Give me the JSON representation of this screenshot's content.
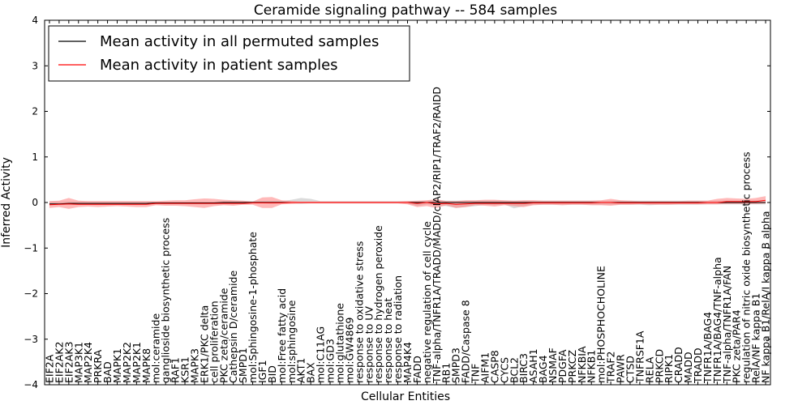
{
  "chart_data": {
    "type": "line",
    "title": "Ceramide signaling pathway -- 584 samples",
    "xlabel": "Cellular Entities",
    "ylabel": "Inferred Activity",
    "ylim": [
      -4,
      4
    ],
    "yticks": [
      4,
      3,
      2,
      1,
      0,
      -1,
      -2,
      -3,
      -4
    ],
    "ytick_labels": [
      "4",
      "3",
      "2",
      "1",
      "0",
      "−1",
      "−2",
      "−3",
      "−4"
    ],
    "legend_position": "top-left",
    "categories": [
      "EIF2A",
      "EIF2AK2",
      "EIF2AK3",
      "MAP3K1",
      "MAP2K4",
      "PRKRA",
      "BAD",
      "MAPK1",
      "MAP2K2",
      "MAP2K1",
      "MAPK8",
      "mol:ceramide",
      "ganglioside biosynthetic process",
      "RAF1",
      "KSR1",
      "MAPK3",
      "ERK1/PKC delta",
      "cell proliferation",
      "PKC zeta/ceramide",
      "Cathepsin D/ceramide",
      "SMPD1",
      "mol:Sphingosine-1-phosphate",
      "IGF1",
      "BID",
      "mol:Free fatty acid",
      "mol:sphingosine",
      "AKT1",
      "BAX",
      "mol:C11AG",
      "mol:GD3",
      "mol:glutathione",
      "mol:GW4869",
      "response to oxidative stress",
      "response to UV",
      "response to hydrogen peroxide",
      "response to heat",
      "response to radiation",
      "MAP4K4",
      "FADD",
      "negative regulation of cell cycle",
      "TNF-alpha/TNFR1A/TRADD/MADD/cIAP2/RIP1/TRAF2/RAIDD",
      "RB1",
      "SMPD3",
      "FADD/Caspase 8",
      "TNF",
      "AIFM1",
      "CASP8",
      "CYCS",
      "BCL2",
      "BIRC3",
      "ASAH1",
      "BAG4",
      "NSMAF",
      "PDGFA",
      "PRKCZ",
      "NFKBIA",
      "NFKB1",
      "mol:PHOSPHOCHOLINE",
      "TRAF2",
      "PAWR",
      "CTSD",
      "TNFRSF1A",
      "RELA",
      "PRKCD",
      "RIPK1",
      "CRADD",
      "MADD",
      "TRADD",
      "TNFR1A/BAG4",
      "TNFR1A/BAG4/TNF-alpha",
      "TNF-alpha/TNFR1A/FAN",
      "PKC zeta/PAR4",
      "regulation of nitric oxide biosynthetic process",
      "RelA/NF kappa B1",
      "NF kappa B1/RelA/I kappa B alpha"
    ],
    "series": [
      {
        "name": "Mean activity in all permuted samples",
        "color": "#000000",
        "values": [
          -0.03,
          -0.03,
          -0.02,
          -0.02,
          -0.02,
          -0.02,
          -0.02,
          -0.02,
          -0.02,
          -0.02,
          -0.02,
          -0.01,
          -0.01,
          -0.01,
          -0.01,
          -0.01,
          -0.01,
          -0.01,
          0,
          0,
          0,
          0,
          0,
          0,
          0,
          0,
          0,
          0,
          0,
          0,
          0,
          0,
          0,
          0,
          0,
          0,
          0,
          0,
          0,
          0,
          0,
          0,
          0,
          0,
          0,
          0,
          0,
          0,
          0,
          0,
          0,
          0,
          0,
          0,
          0,
          0,
          0,
          0,
          0,
          0,
          0,
          0,
          0,
          0,
          0,
          0,
          0,
          0,
          0,
          0,
          0,
          0,
          0,
          0,
          0
        ],
        "band": {
          "color": "#b0b0b0",
          "lower": [
            -0.06,
            -0.06,
            -0.05,
            -0.05,
            -0.05,
            -0.05,
            -0.05,
            -0.05,
            -0.05,
            -0.05,
            -0.05,
            -0.04,
            -0.04,
            -0.04,
            -0.04,
            -0.04,
            -0.04,
            -0.04,
            -0.03,
            -0.03,
            -0.03,
            -0.02,
            -0.02,
            -0.03,
            -0.02,
            -0.02,
            -0.03,
            -0.02,
            -0.02,
            -0.02,
            -0.02,
            -0.02,
            -0.02,
            -0.02,
            -0.02,
            -0.02,
            -0.02,
            -0.02,
            -0.08,
            -0.04,
            -0.06,
            -0.08,
            -0.12,
            -0.1,
            -0.08,
            -0.05,
            -0.06,
            -0.04,
            -0.13,
            -0.08,
            -0.05,
            -0.05,
            -0.05,
            -0.05,
            -0.05,
            -0.05,
            -0.05,
            -0.05,
            -0.05,
            -0.05,
            -0.05,
            -0.05,
            -0.06,
            -0.05,
            -0.05,
            -0.05,
            -0.05,
            -0.05,
            -0.04,
            -0.04,
            -0.04,
            -0.04,
            -0.04,
            -0.04,
            -0.04
          ],
          "upper": [
            0.02,
            0.02,
            0.02,
            0.02,
            0.02,
            0.02,
            0.02,
            0.02,
            0.02,
            0.02,
            0.02,
            0.02,
            0.02,
            0.02,
            0.02,
            0.02,
            0.02,
            0.02,
            0.03,
            0.03,
            0.03,
            0.03,
            0.03,
            0.03,
            0.03,
            0.06,
            0.1,
            0.08,
            0.03,
            0.03,
            0.03,
            0.03,
            0.03,
            0.03,
            0.03,
            0.03,
            0.03,
            0.03,
            0.03,
            0.04,
            0.05,
            0.04,
            0.04,
            0.04,
            0.04,
            0.04,
            0.04,
            0.04,
            0.04,
            0.04,
            0.04,
            0.04,
            0.04,
            0.04,
            0.04,
            0.04,
            0.04,
            0.04,
            0.04,
            0.04,
            0.04,
            0.04,
            0.04,
            0.04,
            0.04,
            0.04,
            0.04,
            0.04,
            0.04,
            0.04,
            0.04,
            0.04,
            0.04,
            0.05,
            0.05
          ]
        }
      },
      {
        "name": "Mean activity in patient samples",
        "color": "#ff0000",
        "values": [
          -0.05,
          -0.04,
          -0.03,
          -0.04,
          -0.04,
          -0.04,
          -0.04,
          -0.04,
          -0.04,
          -0.04,
          -0.04,
          -0.02,
          -0.02,
          -0.02,
          -0.02,
          -0.02,
          -0.02,
          -0.02,
          -0.02,
          -0.02,
          -0.02,
          -0.01,
          -0.01,
          -0.01,
          -0.01,
          0,
          0,
          0,
          0,
          0,
          0,
          0,
          0,
          0,
          0,
          0,
          0,
          0,
          -0.02,
          0,
          -0.03,
          -0.02,
          -0.04,
          -0.03,
          -0.02,
          -0.02,
          -0.02,
          -0.02,
          -0.02,
          -0.02,
          -0.01,
          -0.01,
          -0.01,
          -0.01,
          -0.01,
          -0.01,
          -0.01,
          0,
          0,
          -0.01,
          -0.01,
          -0.01,
          -0.01,
          -0.01,
          -0.01,
          -0.01,
          -0.01,
          -0.01,
          0,
          0,
          0.02,
          0.02,
          0.02,
          0.02,
          0.05
        ],
        "band": {
          "color": "#ff8080",
          "lower": [
            -0.12,
            -0.1,
            -0.14,
            -0.1,
            -0.09,
            -0.1,
            -0.09,
            -0.08,
            -0.09,
            -0.1,
            -0.1,
            -0.06,
            -0.07,
            -0.07,
            -0.08,
            -0.1,
            -0.12,
            -0.08,
            -0.06,
            -0.07,
            -0.05,
            -0.05,
            -0.12,
            -0.12,
            -0.04,
            -0.03,
            -0.02,
            -0.02,
            -0.02,
            -0.02,
            -0.02,
            -0.02,
            -0.02,
            -0.02,
            -0.02,
            -0.02,
            -0.02,
            -0.04,
            -0.1,
            -0.08,
            -0.12,
            -0.06,
            -0.12,
            -0.1,
            -0.06,
            -0.07,
            -0.09,
            -0.06,
            -0.08,
            -0.1,
            -0.06,
            -0.05,
            -0.05,
            -0.06,
            -0.05,
            -0.05,
            -0.06,
            -0.06,
            -0.07,
            -0.05,
            -0.05,
            -0.04,
            -0.05,
            -0.05,
            -0.05,
            -0.04,
            -0.04,
            -0.04,
            -0.04,
            -0.04,
            -0.03,
            -0.03,
            -0.03,
            -0.03,
            -0.02
          ],
          "upper": [
            0.03,
            0.04,
            0.1,
            0.04,
            0.03,
            0.03,
            0.03,
            0.03,
            0.03,
            0.03,
            0.03,
            0.03,
            0.04,
            0.05,
            0.05,
            0.07,
            0.09,
            0.08,
            0.06,
            0.05,
            0.04,
            0.02,
            0.11,
            0.12,
            0.05,
            0.03,
            0.02,
            0.02,
            0.02,
            0.02,
            0.02,
            0.02,
            0.02,
            0.02,
            0.02,
            0.02,
            0.02,
            0.03,
            0.04,
            0.05,
            0.07,
            0.03,
            0.03,
            0.05,
            0.05,
            0.06,
            0.06,
            0.05,
            0.04,
            0.05,
            0.05,
            0.04,
            0.04,
            0.04,
            0.04,
            0.04,
            0.04,
            0.05,
            0.08,
            0.05,
            0.04,
            0.03,
            0.03,
            0.03,
            0.03,
            0.03,
            0.04,
            0.04,
            0.04,
            0.08,
            0.1,
            0.09,
            0.08,
            0.1,
            0.14
          ]
        }
      }
    ]
  }
}
